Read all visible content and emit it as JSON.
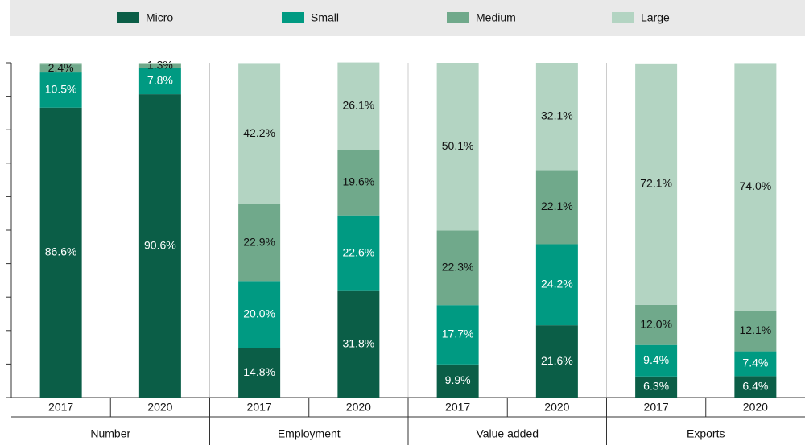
{
  "chart_data": {
    "type": "stacked_bar",
    "categories": [
      "2017",
      "2020",
      "2017",
      "2020",
      "2017",
      "2020",
      "2017",
      "2020"
    ],
    "groups": [
      "Number",
      "Employment",
      "Value added",
      "Exports"
    ],
    "series": [
      {
        "name": "Micro",
        "color": "#0b5e47",
        "label_color": "#ffffff",
        "values": [
          86.6,
          90.6,
          14.8,
          31.8,
          9.9,
          21.6,
          6.3,
          6.4
        ],
        "value_labels": [
          "86.6%",
          "90.6%",
          "14.8%",
          "31.8%",
          "9.9%",
          "21.6%",
          "6.3%",
          "6.4%"
        ]
      },
      {
        "name": "Small",
        "color": "#009a82",
        "label_color": "#ffffff",
        "values": [
          10.5,
          7.8,
          20.0,
          22.6,
          17.7,
          24.2,
          9.4,
          7.4
        ],
        "value_labels": [
          "10.5%",
          "7.8%",
          "20.0%",
          "22.6%",
          "17.7%",
          "24.2%",
          "9.4%",
          "7.4%"
        ]
      },
      {
        "name": "Medium",
        "color": "#70a98b",
        "label_color": "#111111",
        "values": [
          2.4,
          1.3,
          22.9,
          19.6,
          22.3,
          22.1,
          12.0,
          12.1
        ],
        "value_labels": [
          "2.4%",
          "1.3%",
          "22.9%",
          "19.6%",
          "22.3%",
          "22.1%",
          "12.0%",
          "12.1%"
        ]
      },
      {
        "name": "Large",
        "color": "#b3d4c2",
        "label_color": "#111111",
        "values": [
          0.5,
          0.3,
          42.2,
          26.1,
          50.1,
          32.1,
          72.1,
          74.0
        ],
        "value_labels": [
          null,
          null,
          "42.2%",
          "26.1%",
          "50.1%",
          "32.1%",
          "72.1%",
          "74.0%"
        ]
      }
    ],
    "ylim": [
      0,
      100
    ],
    "yticks": [
      0,
      10,
      20,
      30,
      40,
      50,
      60,
      70,
      80,
      90,
      100
    ],
    "grid": true
  }
}
